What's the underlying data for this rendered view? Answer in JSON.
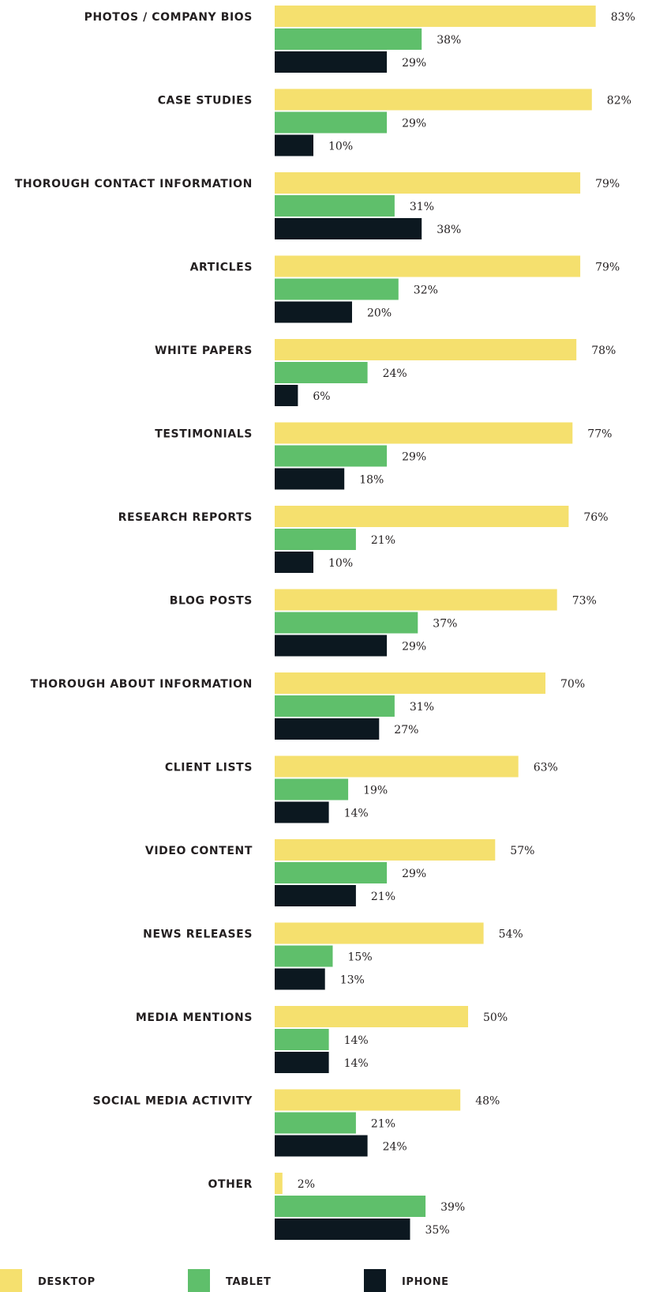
{
  "chart_data": {
    "type": "bar",
    "orientation": "horizontal",
    "categories": [
      "PHOTOS / COMPANY BIOS",
      "CASE STUDIES",
      "THOROUGH CONTACT INFORMATION",
      "ARTICLES",
      "WHITE PAPERS",
      "TESTIMONIALS",
      "RESEARCH REPORTS",
      "BLOG POSTS",
      "THOROUGH ABOUT INFORMATION",
      "CLIENT LISTS",
      "VIDEO CONTENT",
      "NEWS RELEASES",
      "MEDIA MENTIONS",
      "SOCIAL MEDIA ACTIVITY",
      "OTHER"
    ],
    "series": [
      {
        "name": "DESKTOP",
        "color": "#f5e06e",
        "values": [
          83,
          82,
          79,
          79,
          78,
          77,
          76,
          73,
          70,
          63,
          57,
          54,
          50,
          48,
          2
        ]
      },
      {
        "name": "TABLET",
        "color": "#5fbf6b",
        "values": [
          38,
          29,
          31,
          32,
          24,
          29,
          21,
          37,
          31,
          19,
          29,
          15,
          14,
          21,
          39
        ]
      },
      {
        "name": "IPHONE",
        "color": "#0c1820",
        "values": [
          29,
          10,
          38,
          20,
          6,
          18,
          10,
          29,
          27,
          14,
          21,
          13,
          14,
          24,
          35
        ]
      }
    ],
    "value_suffix": "%",
    "legend_position": "bottom-left",
    "grid": false
  }
}
